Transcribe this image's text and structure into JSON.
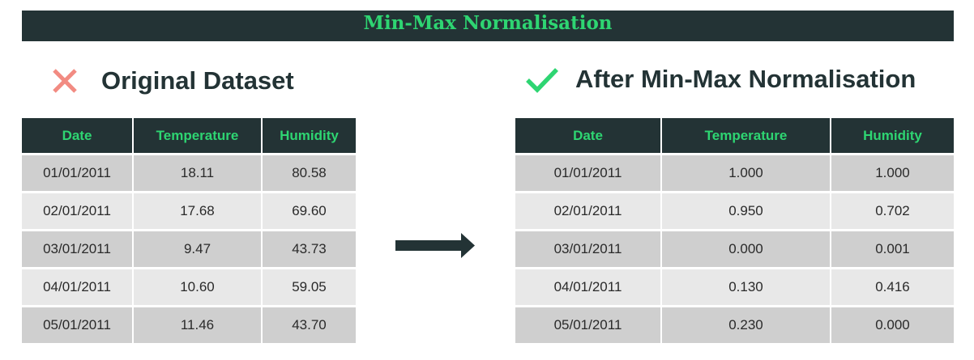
{
  "title": "Min-Max Normalisation",
  "left": {
    "heading": "Original Dataset",
    "icon": "cross-icon",
    "icon_color": "#f28b82",
    "columns": [
      "Date",
      "Temperature",
      "Humidity"
    ],
    "rows": [
      [
        "01/01/2011",
        "18.11",
        "80.58"
      ],
      [
        "02/01/2011",
        "17.68",
        "69.60"
      ],
      [
        "03/01/2011",
        "9.47",
        "43.73"
      ],
      [
        "04/01/2011",
        "10.60",
        "59.05"
      ],
      [
        "05/01/2011",
        "11.46",
        "43.70"
      ]
    ]
  },
  "right": {
    "heading": "After Min-Max Normalisation",
    "icon": "check-icon",
    "icon_color": "#2ed572",
    "columns": [
      "Date",
      "Temperature",
      "Humidity"
    ],
    "rows": [
      [
        "01/01/2011",
        "1.000",
        "1.000"
      ],
      [
        "02/01/2011",
        "0.950",
        "0.702"
      ],
      [
        "03/01/2011",
        "0.000",
        "0.001"
      ],
      [
        "04/01/2011",
        "0.130",
        "0.416"
      ],
      [
        "05/01/2011",
        "0.230",
        "0.000"
      ]
    ]
  },
  "arrow_icon": "right-arrow-icon",
  "colors": {
    "dark": "#233335",
    "accent": "#2ed572",
    "row_odd": "#cfcfcf",
    "row_even": "#e8e8e8"
  }
}
